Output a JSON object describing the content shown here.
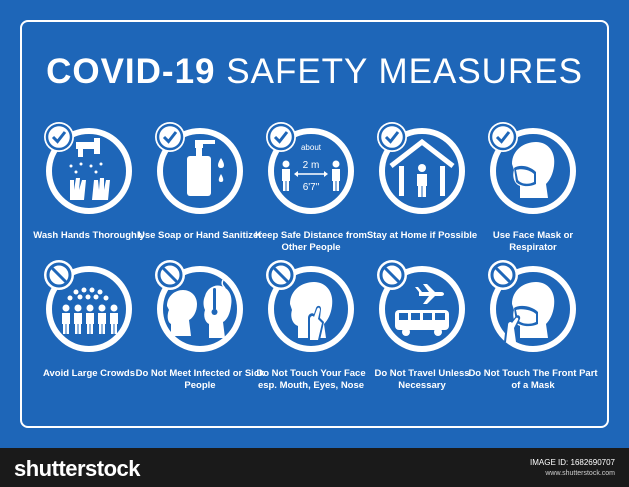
{
  "poster": {
    "title_bold": "COVID-19",
    "title_light": "SAFETY MEASURES",
    "background_color": "#1e66b8",
    "foreground_color": "#ffffff",
    "distance": {
      "about": "about",
      "meters": "2 m",
      "feet": "6'7\""
    },
    "do_items": [
      {
        "label": "Wash Hands Thoroughly",
        "icon": "hand-wash-icon"
      },
      {
        "label": "Use Soap or Hand Sanitizer",
        "icon": "soap-dispenser-icon"
      },
      {
        "label": "Keep Safe Distance from Other People",
        "icon": "social-distance-icon"
      },
      {
        "label": "Stay at Home if Possible",
        "icon": "stay-home-icon"
      },
      {
        "label": "Use Face Mask or Respirator",
        "icon": "face-mask-icon"
      }
    ],
    "dont_items": [
      {
        "label": "Avoid Large Crowds",
        "icon": "crowd-icon"
      },
      {
        "label": "Do Not Meet Infected or Sick People",
        "icon": "sick-person-icon"
      },
      {
        "label": "Do Not Touch Your Face esp. Mouth, Eyes, Nose",
        "icon": "touch-face-icon"
      },
      {
        "label": "Do Not Travel Unless Necessary",
        "icon": "travel-icon"
      },
      {
        "label": "Do Not Touch The Front Part of a Mask",
        "icon": "touch-mask-icon"
      }
    ]
  },
  "footer": {
    "brand": "shutterstock",
    "image_id": "IMAGE ID: 1682690707",
    "site": "www.shutterstock.com"
  }
}
